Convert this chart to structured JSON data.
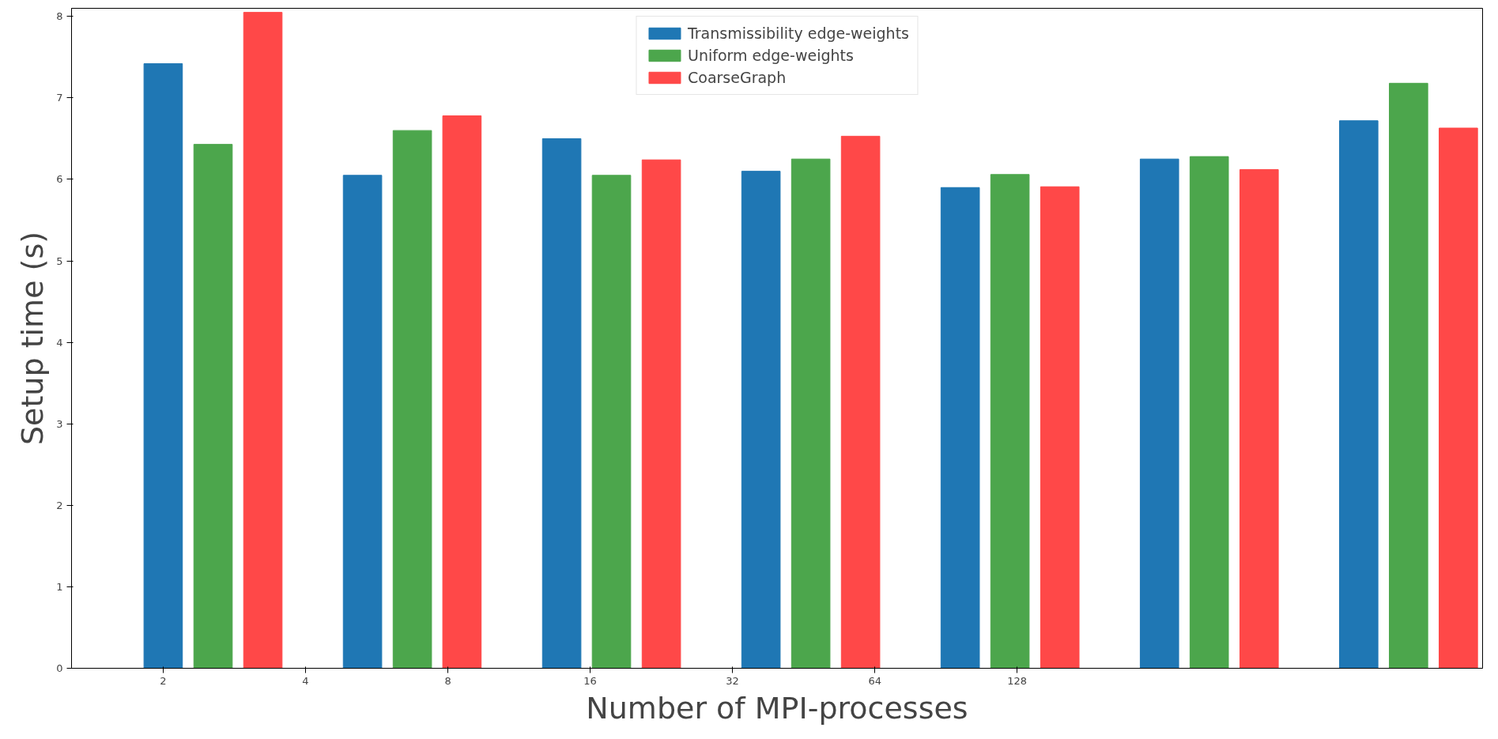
{
  "chart_data": {
    "type": "bar",
    "xlabel": "Number of MPI-processes",
    "ylabel": "Setup time (s)",
    "log": "x",
    "xlim": [
      1.28,
      1235
    ],
    "ylim": [
      0,
      8.1
    ],
    "xticks": [
      2,
      4,
      8,
      16,
      32,
      64,
      128
    ],
    "yticks": [
      0,
      1,
      2,
      3,
      4,
      5,
      6,
      7,
      8
    ],
    "series": [
      {
        "name": "Transmissibility edge-weights",
        "color": "#1f77b4",
        "x": [
          2,
          5.28,
          13.93,
          36.76,
          97.0,
          256,
          675.6
        ],
        "values": [
          7.42,
          6.05,
          6.5,
          6.1,
          5.9,
          6.25,
          6.72
        ]
      },
      {
        "name": "Uniform edge-weights",
        "color": "#4ca64c",
        "x": [
          2.55,
          6.73,
          17.75,
          46.85,
          123.6,
          326.2,
          861.1
        ],
        "values": [
          6.43,
          6.6,
          6.05,
          6.25,
          6.06,
          6.28,
          7.18
        ]
      },
      {
        "name": "CoarseGraph",
        "color": "#ff4848",
        "x": [
          3.25,
          8.57,
          22.63,
          59.71,
          157.6,
          415.9,
          1097.5
        ],
        "values": [
          8.05,
          6.78,
          6.24,
          6.53,
          5.91,
          6.12,
          6.63
        ]
      }
    ],
    "grid": false,
    "legend": "top"
  }
}
